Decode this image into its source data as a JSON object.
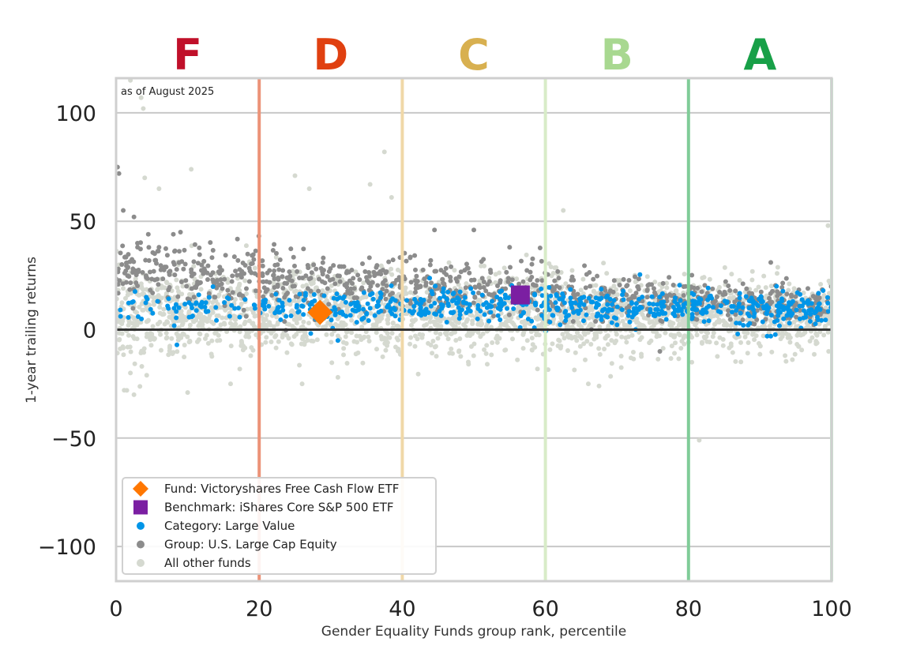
{
  "chart_data": {
    "type": "scatter",
    "title": "",
    "xlabel": "Gender Equality Funds group rank, percentile",
    "ylabel": "1-year trailing returns",
    "annotation": "as of August 2025",
    "xlim": [
      0,
      100
    ],
    "ylim": [
      -116,
      116
    ],
    "xticks": [
      0,
      20,
      40,
      60,
      80,
      100
    ],
    "yticks": [
      100,
      50,
      0,
      -50,
      -100
    ],
    "xtick_labels": [
      "0",
      "20",
      "40",
      "60",
      "80",
      "100"
    ],
    "ytick_labels": [
      "100",
      "50",
      "0",
      "−50",
      "−100"
    ],
    "grid": true,
    "zero_line": 0,
    "grades": [
      {
        "label": "F",
        "x": 10,
        "color": "#c0102a"
      },
      {
        "label": "D",
        "x": 30,
        "color": "#e04010"
      },
      {
        "label": "C",
        "x": 50,
        "color": "#d8b050"
      },
      {
        "label": "B",
        "x": 70,
        "color": "#a8d890"
      },
      {
        "label": "A",
        "x": 90,
        "color": "#18a048"
      }
    ],
    "boundaries": [
      {
        "x": 20,
        "color": "#ec9378"
      },
      {
        "x": 40,
        "color": "#f0d8a8"
      },
      {
        "x": 60,
        "color": "#d8ecc8"
      },
      {
        "x": 80,
        "color": "#80cc98"
      },
      {
        "x": 100,
        "color": "#c8e8d0"
      }
    ],
    "legend_position": "lower-left",
    "legend": [
      {
        "label": "Fund: Victoryshares Free Cash Flow ETF",
        "marker": "diamond",
        "color": "#ff7700"
      },
      {
        "label": "Benchmark: iShares Core S&P 500 ETF",
        "marker": "square",
        "color": "#7b1fa2"
      },
      {
        "label": "Category: Large Value",
        "marker": "dot",
        "color": "#0095e8"
      },
      {
        "label": "Group: U.S. Large Cap Equity",
        "marker": "dot",
        "color": "#8c8c8c"
      },
      {
        "label": "All other funds",
        "marker": "dot",
        "color": "#d5d9d0"
      }
    ],
    "fund": {
      "x": 28.5,
      "y": 8
    },
    "benchmark": {
      "x": 56.5,
      "y": 16
    },
    "series": [
      {
        "name": "All other funds",
        "color": "#d5d9d0",
        "center": [
          22,
          8
        ],
        "spread": 9,
        "outliers": [
          [
            2,
            115
          ],
          [
            3.5,
            107
          ],
          [
            3.8,
            102
          ],
          [
            10.5,
            74
          ],
          [
            25,
            71
          ],
          [
            27,
            65
          ],
          [
            35.5,
            67
          ],
          [
            37.5,
            82
          ],
          [
            38.5,
            61
          ],
          [
            4,
            70
          ],
          [
            6,
            65
          ],
          [
            2,
            -20
          ],
          [
            1.5,
            -28
          ],
          [
            2.5,
            -30
          ],
          [
            10,
            -29
          ],
          [
            16,
            -25
          ],
          [
            26,
            -25
          ],
          [
            31,
            -22
          ],
          [
            62.5,
            55
          ],
          [
            66,
            -25
          ],
          [
            67.5,
            -26
          ],
          [
            81.5,
            -51
          ],
          [
            99.5,
            48
          ]
        ]
      },
      {
        "name": "Group: U.S. Large Cap Equity",
        "color": "#8c8c8c",
        "center": [
          35,
          18
        ],
        "spread": 6,
        "outliers": [
          [
            0.2,
            75
          ],
          [
            0.4,
            72
          ],
          [
            1,
            55
          ],
          [
            2.5,
            52
          ],
          [
            3,
            38
          ],
          [
            4.5,
            44
          ],
          [
            6,
            38
          ],
          [
            8,
            44
          ],
          [
            9,
            45
          ],
          [
            44.5,
            46
          ],
          [
            50,
            46
          ],
          [
            55,
            38
          ],
          [
            91.5,
            31
          ],
          [
            76,
            -10
          ]
        ]
      },
      {
        "name": "Category: Large Value",
        "color": "#0095e8",
        "center": [
          10,
          11
        ],
        "spread": 4,
        "outliers": [
          [
            8.5,
            -7
          ],
          [
            31,
            -5
          ],
          [
            91,
            -3
          ],
          [
            91.5,
            -3
          ]
        ]
      }
    ]
  }
}
